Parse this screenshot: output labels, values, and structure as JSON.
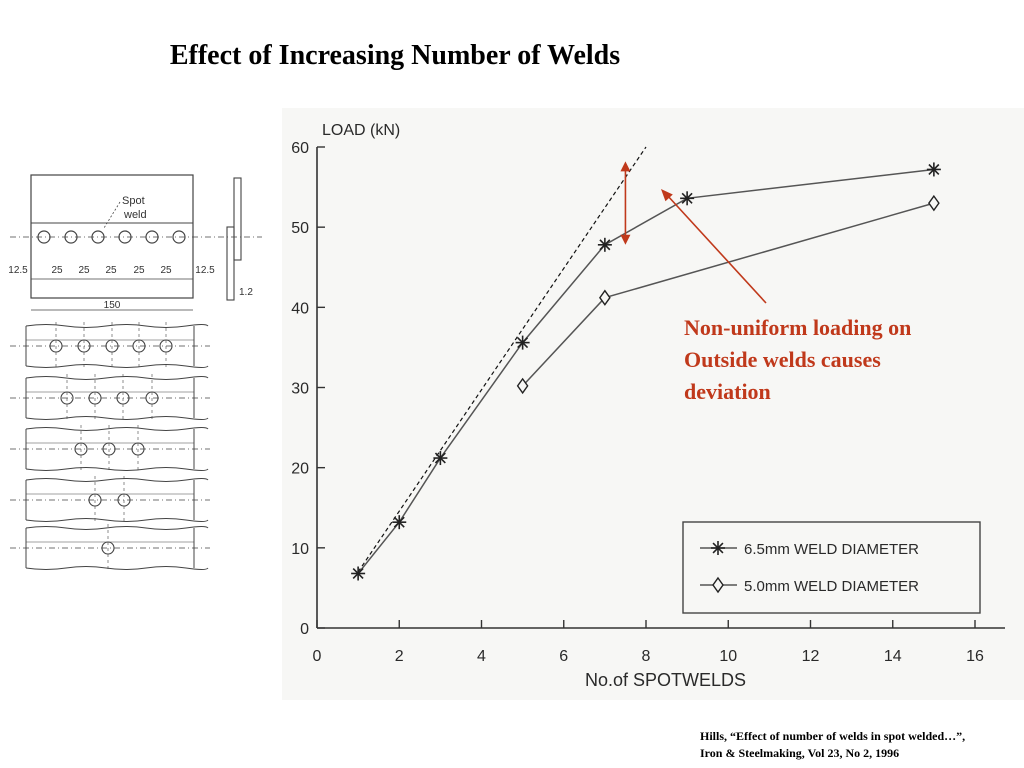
{
  "slide": {
    "title": "Effect of Increasing Number of Welds",
    "annotation": [
      "Non-uniform loading on",
      "Outside welds causes",
      "deviation"
    ],
    "citation": [
      "Hills, “Effect of number of welds in spot welded…”,",
      "Iron & Steelmaking, Vol 23, No 2, 1996"
    ],
    "accent_color": "#c0391b"
  },
  "specimen": {
    "spot_label": [
      "Spot",
      "weld"
    ],
    "dims": [
      "12.5",
      "25",
      "25",
      "25",
      "25",
      "25",
      "12.5"
    ],
    "width_label": "150",
    "thickness_label": "1.2",
    "row_counts": [
      6,
      5,
      4,
      3,
      2,
      1
    ]
  },
  "chart_data": {
    "type": "line",
    "xlabel": "No.of SPOTWELDS",
    "ylabel": "LOAD (kN)",
    "xlim": [
      0,
      16
    ],
    "ylim": [
      0,
      60
    ],
    "xticks": [
      0,
      2,
      4,
      6,
      8,
      10,
      12,
      14,
      16
    ],
    "yticks": [
      0,
      10,
      20,
      30,
      40,
      50,
      60
    ],
    "grid": false,
    "legend_position": "bottom-right",
    "series": [
      {
        "name": "6.5mm WELD DIAMETER",
        "marker": "asterisk",
        "x": [
          1,
          2,
          3,
          5,
          7,
          9,
          15
        ],
        "y": [
          6.8,
          13.2,
          21.2,
          35.6,
          47.8,
          53.6,
          57.2
        ]
      },
      {
        "name": "5.0mm WELD DIAMETER",
        "marker": "diamond",
        "x": [
          5,
          7,
          15
        ],
        "y": [
          30.2,
          41.2,
          53.0
        ]
      }
    ],
    "reference_line": {
      "style": "dashed",
      "x": [
        1,
        8
      ],
      "y": [
        7,
        60
      ]
    },
    "deviation_marker": {
      "x": 7.5,
      "y": [
        47.8,
        58.2
      ]
    }
  }
}
